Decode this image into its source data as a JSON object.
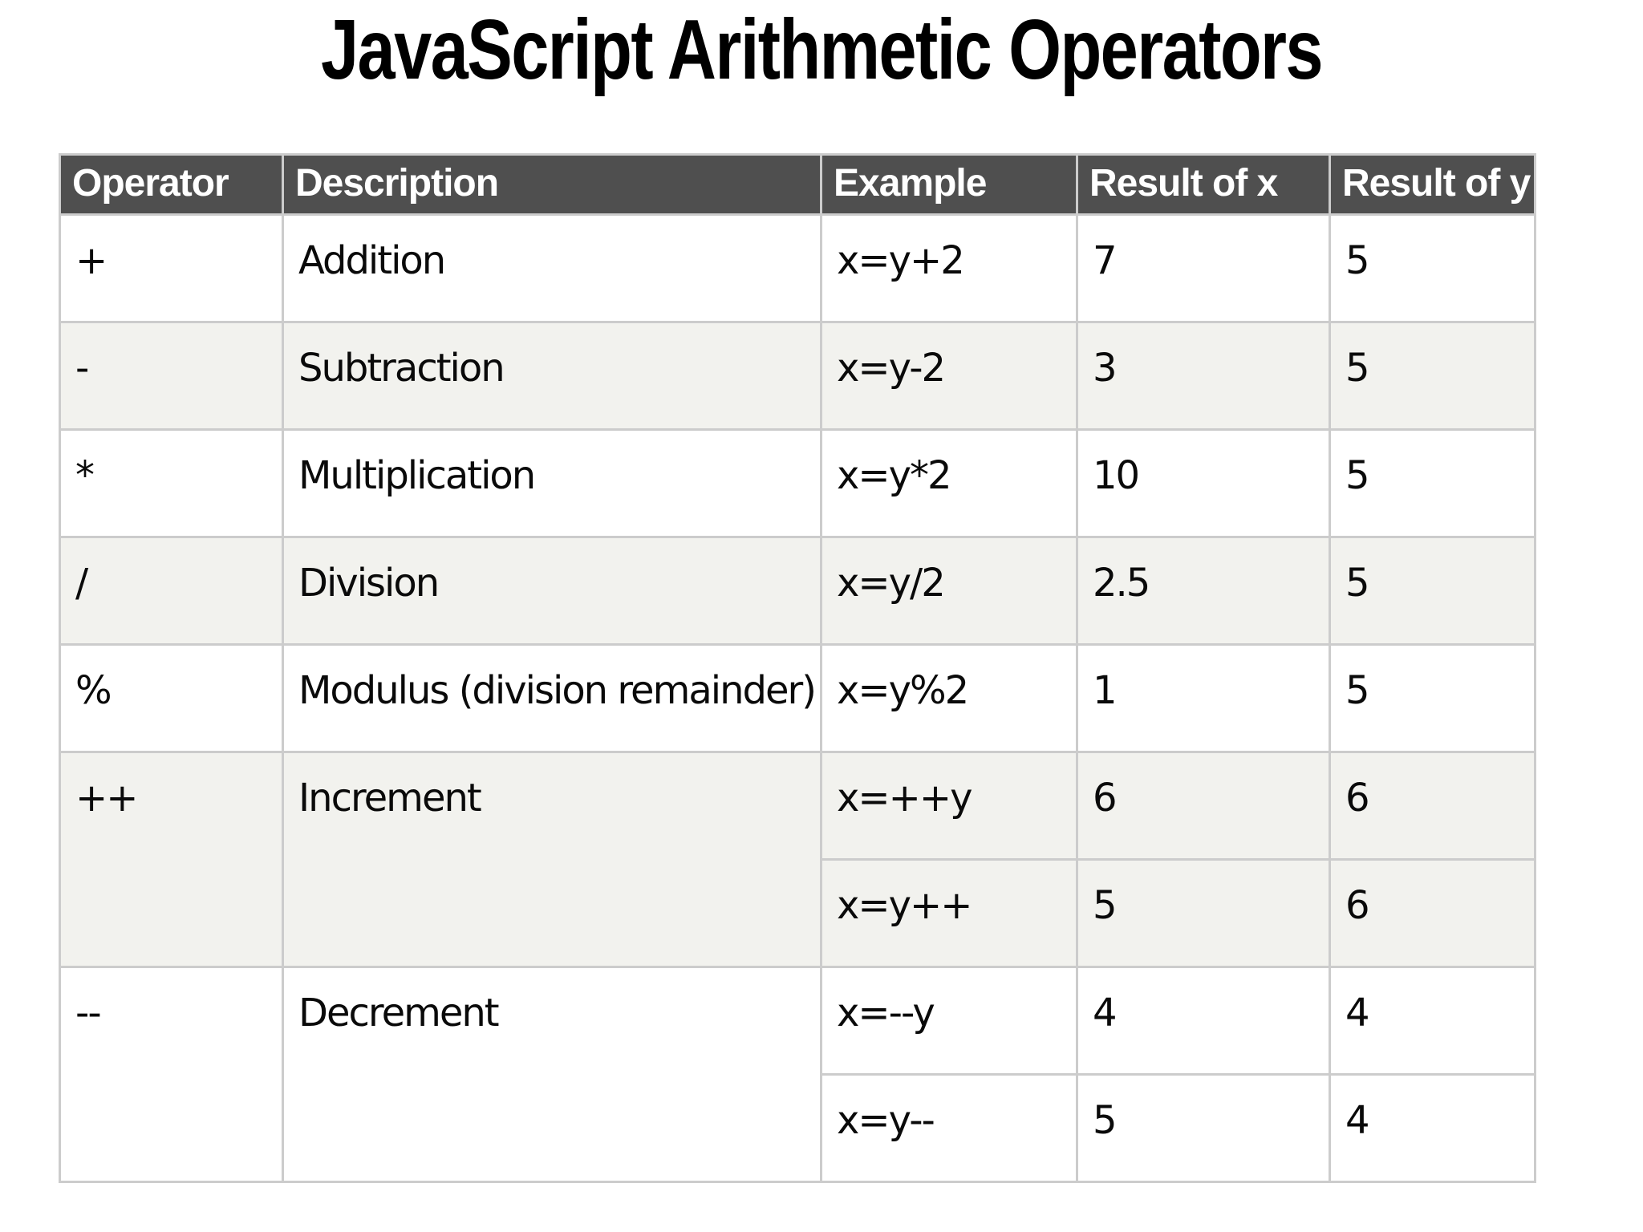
{
  "page": {
    "title": "JavaScript Arithmetic Operators"
  },
  "table": {
    "headers": {
      "operator": "Operator",
      "description": "Description",
      "example": "Example",
      "result_x": "Result of x",
      "result_y": "Result of y"
    },
    "rows": [
      {
        "operator": "+",
        "description": "Addition",
        "example": "x=y+2",
        "result_x": "7",
        "result_y": "5"
      },
      {
        "operator": "-",
        "description": "Subtraction",
        "example": "x=y-2",
        "result_x": "3",
        "result_y": "5"
      },
      {
        "operator": "*",
        "description": "Multiplication",
        "example": "x=y*2",
        "result_x": "10",
        "result_y": "5"
      },
      {
        "operator": "/",
        "description": "Division",
        "example": "x=y/2",
        "result_x": "2.5",
        "result_y": "5"
      },
      {
        "operator": "%",
        "description": "Modulus (division remainder)",
        "example": "x=y%2",
        "result_x": "1",
        "result_y": "5"
      },
      {
        "operator": "++",
        "description": "Increment",
        "examples": [
          {
            "example": "x=++y",
            "result_x": "6",
            "result_y": "6"
          },
          {
            "example": "x=y++",
            "result_x": "5",
            "result_y": "6"
          }
        ]
      },
      {
        "operator": "--",
        "description": "Decrement",
        "examples": [
          {
            "example": "x=--y",
            "result_x": "4",
            "result_y": "4"
          },
          {
            "example": "x=y--",
            "result_x": "5",
            "result_y": "4"
          }
        ]
      }
    ],
    "colors": {
      "header_bg": "#4f4f4f",
      "header_text": "#ffffff",
      "row_bg": "#ffffff",
      "row_alt_bg": "#f2f2ee",
      "border": "#cccccc",
      "body_text": "#0a0a0a",
      "title_text": "#000000"
    }
  }
}
